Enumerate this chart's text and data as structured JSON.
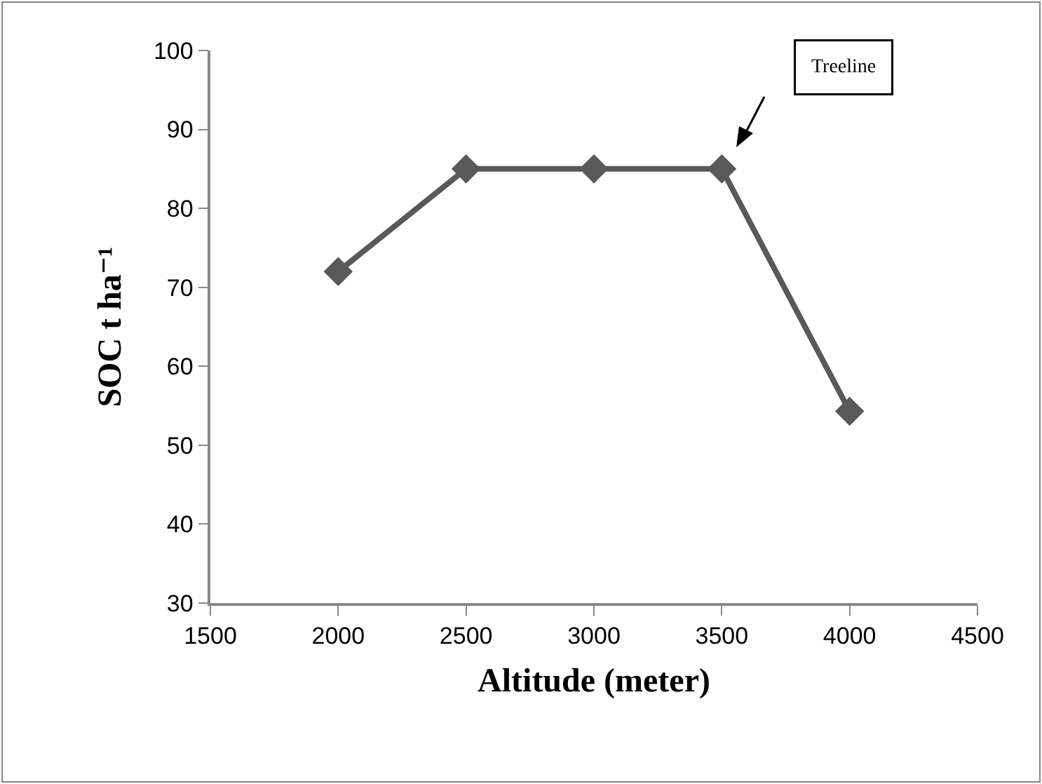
{
  "chart_data": {
    "type": "line",
    "xlabel": "Altitude (meter)",
    "ylabel": "SOC t ha⁻¹",
    "x": [
      2000,
      2500,
      3000,
      3500,
      4000
    ],
    "series": [
      {
        "color": "#595959",
        "values": [
          72,
          85,
          85,
          85,
          54.3
        ]
      }
    ],
    "xlim": [
      1500,
      4500
    ],
    "xticks": [
      1500,
      2000,
      2500,
      3000,
      3500,
      4000,
      4500
    ],
    "ylim": [
      30,
      100
    ],
    "yticks": [
      30,
      40,
      50,
      60,
      70,
      80,
      90,
      100
    ],
    "marker": "diamond",
    "line_style": "solid",
    "grid": false,
    "annotations": [
      "Treeline"
    ]
  }
}
